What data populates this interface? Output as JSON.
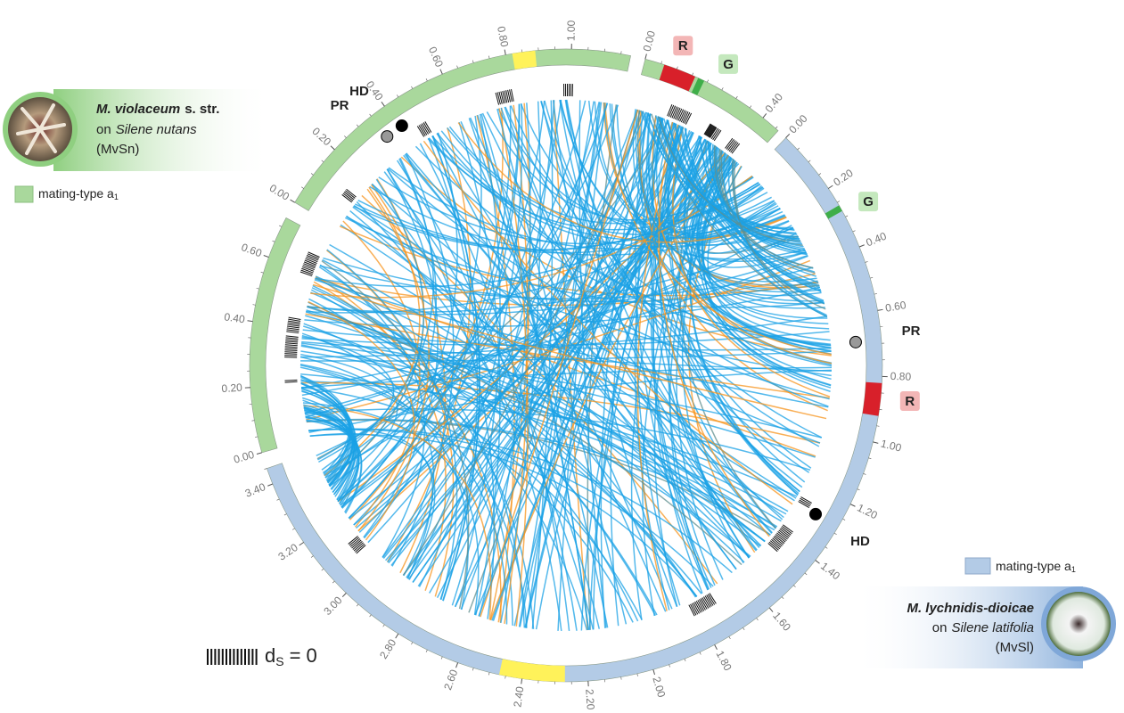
{
  "species": [
    {
      "name": "M. violaceum",
      "name_suffix": "s. str.",
      "host_prefix": "on",
      "host": "Silene nutans",
      "code": "(MvSn)",
      "mating_type": {
        "text": "mating-type a",
        "subscript": "1"
      },
      "color": "#a9d89c"
    },
    {
      "name": "M. lychnidis-dioicae",
      "host_prefix": "on",
      "host": "Silene latifolia",
      "code": "(MvSl)",
      "mating_type": {
        "text": "mating-type a",
        "subscript": "1"
      },
      "color": "#b3cbe6"
    }
  ],
  "segments": [
    {
      "color": "#a9d89c",
      "end": 0.73,
      "ticks": [
        {
          "value": 0,
          "label": "0.00"
        },
        {
          "value": 0.2,
          "label": "0.20"
        },
        {
          "value": 0.4,
          "label": "0.40"
        },
        {
          "value": 0.6,
          "label": "0.60"
        }
      ],
      "regions": [],
      "markers": []
    },
    {
      "color": "#a9d89c",
      "end": 1.18,
      "ticks": [
        {
          "value": 0,
          "label": "0.00"
        },
        {
          "value": 0.2,
          "label": "0.20"
        },
        {
          "value": 0.4,
          "label": "0.40"
        },
        {
          "value": 0.6,
          "label": "0.60"
        },
        {
          "value": 0.8,
          "label": "0.80"
        },
        {
          "value": 1,
          "label": "1.00"
        }
      ],
      "regions": [
        {
          "start": 0.82,
          "end": 0.89,
          "color": "#fff25a"
        }
      ],
      "markers": [
        {
          "label": "HD",
          "position": 0.41,
          "color": "#000000"
        },
        {
          "label": "PR",
          "position": 0.35,
          "color": "#999999"
        }
      ]
    },
    {
      "color": "#a9d89c",
      "end": 0.46,
      "ticks": [
        {
          "value": 0,
          "label": "0.00"
        },
        {
          "value": 0.4,
          "label": "0.40"
        }
      ],
      "regions": [
        {
          "label": "R",
          "start": 0.06,
          "end": 0.16,
          "color": "#d8202a"
        },
        {
          "label": "G",
          "start": 0.17,
          "end": 0.19,
          "color": "#3fae49"
        }
      ],
      "markers": []
    },
    {
      "color": "#b3cbe6",
      "end": 3.45,
      "ticks": [
        {
          "value": 0,
          "label": "0.00"
        },
        {
          "value": 0.2,
          "label": "0.20"
        },
        {
          "value": 0.4,
          "label": "0.40"
        },
        {
          "value": 0.6,
          "label": "0.60"
        },
        {
          "value": 0.8,
          "label": "0.80"
        },
        {
          "value": 1,
          "label": "1.00"
        },
        {
          "value": 1.2,
          "label": "1.20"
        },
        {
          "value": 1.4,
          "label": "1.40"
        },
        {
          "value": 1.6,
          "label": "1.60"
        },
        {
          "value": 1.8,
          "label": "1.80"
        },
        {
          "value": 2,
          "label": "2.00"
        },
        {
          "value": 2.2,
          "label": "2.20"
        },
        {
          "value": 2.4,
          "label": "2.40"
        },
        {
          "value": 2.6,
          "label": "2.60"
        },
        {
          "value": 2.8,
          "label": "2.80"
        },
        {
          "value": 3,
          "label": "3.00"
        },
        {
          "value": 3.2,
          "label": "3.20"
        },
        {
          "value": 3.4,
          "label": "3.40"
        }
      ],
      "regions": [
        {
          "label": "G",
          "start": 0.26,
          "end": 0.28,
          "color": "#3fae49"
        },
        {
          "label": "R",
          "start": 0.82,
          "end": 0.92,
          "color": "#d8202a"
        },
        {
          "start": 2.27,
          "end": 2.47,
          "color": "#fff25a"
        }
      ],
      "markers": [
        {
          "label": "PR",
          "position": 0.69,
          "color": "#999999"
        },
        {
          "label": "HD",
          "position": 1.28,
          "color": "#000000"
        }
      ]
    }
  ],
  "legend": {
    "symbol": "d",
    "subscript": "S",
    "text": "= 0"
  },
  "link_colors": [
    "#1ba1e6",
    "#f7941d",
    "#5f8f8f"
  ]
}
